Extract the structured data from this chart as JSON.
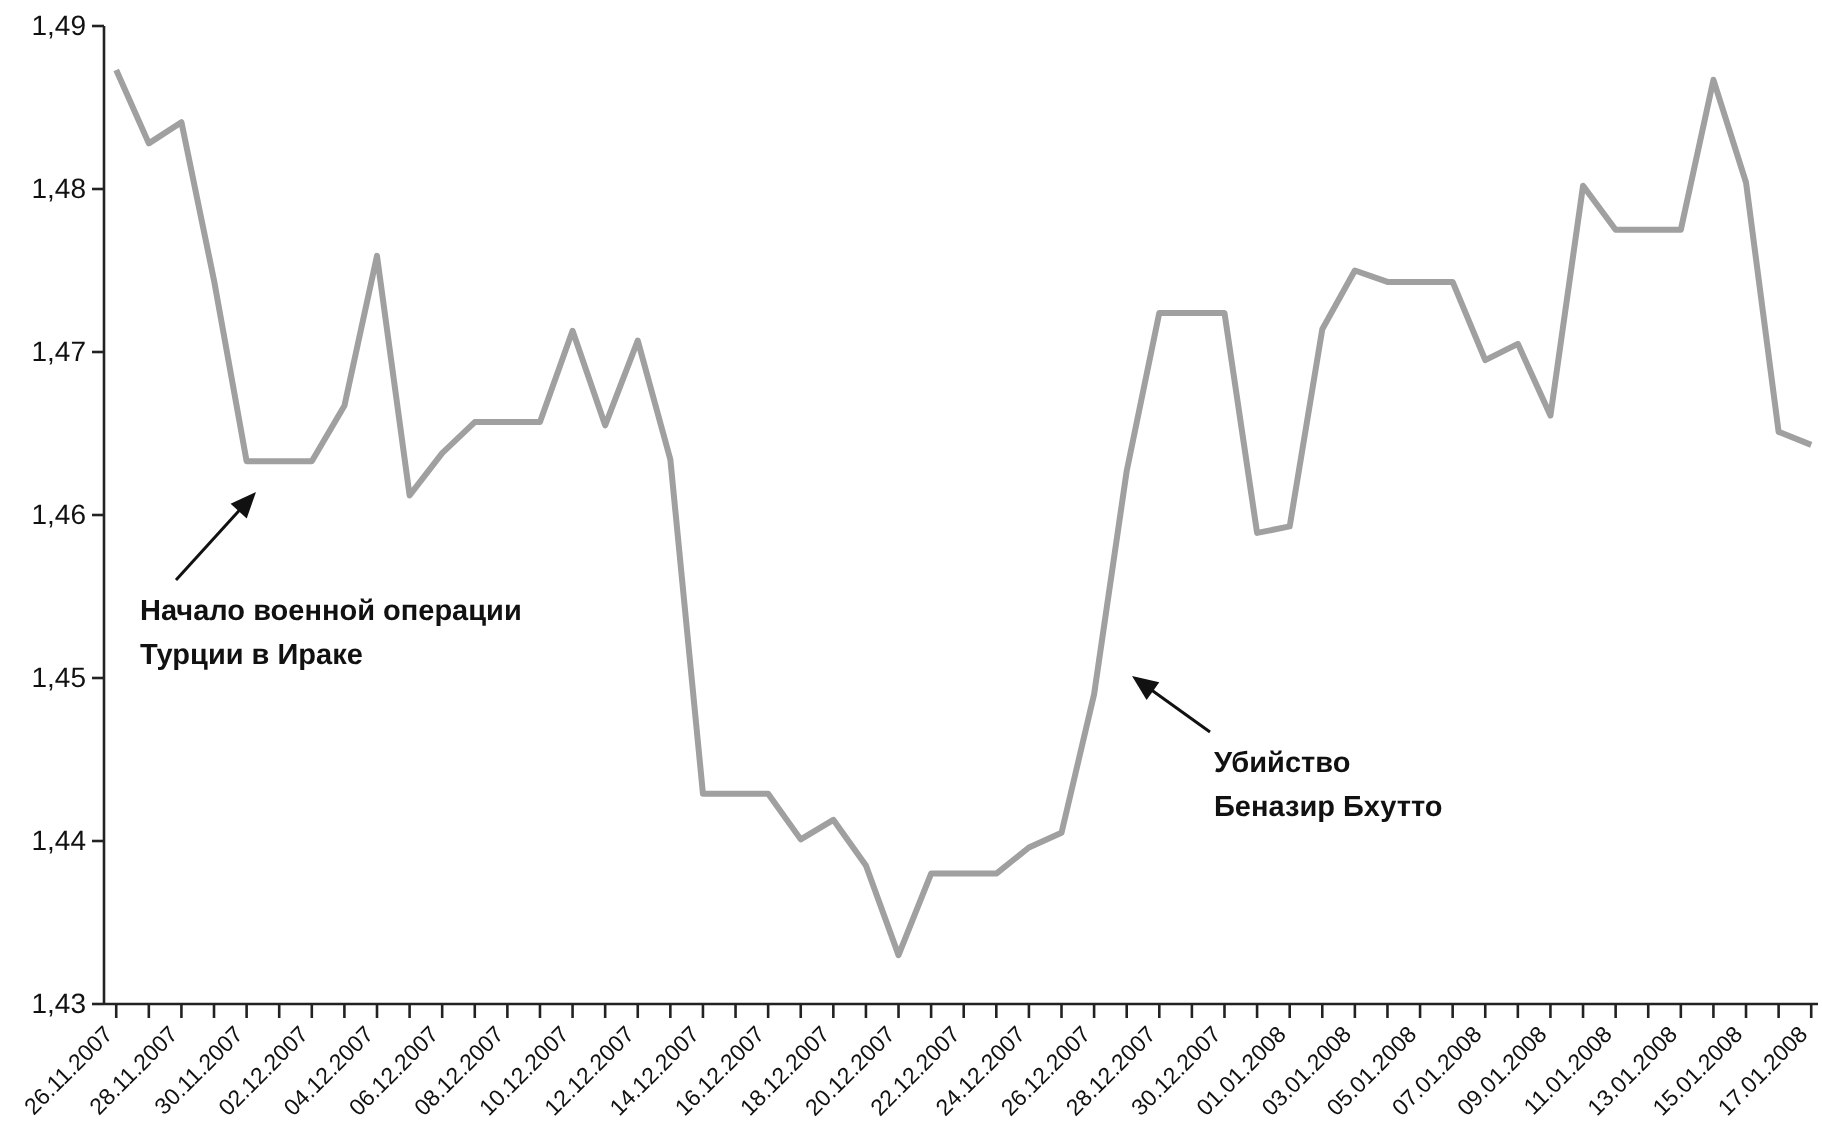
{
  "chart_data": {
    "type": "line",
    "x": [
      "2007-11-26",
      "2007-11-27",
      "2007-11-28",
      "2007-11-29",
      "2007-11-30",
      "2007-12-01",
      "2007-12-02",
      "2007-12-03",
      "2007-12-04",
      "2007-12-05",
      "2007-12-06",
      "2007-12-07",
      "2007-12-08",
      "2007-12-09",
      "2007-12-10",
      "2007-12-11",
      "2007-12-12",
      "2007-12-13",
      "2007-12-14",
      "2007-12-15",
      "2007-12-16",
      "2007-12-17",
      "2007-12-18",
      "2007-12-19",
      "2007-12-20",
      "2007-12-21",
      "2007-12-22",
      "2007-12-23",
      "2007-12-24",
      "2007-12-25",
      "2007-12-26",
      "2007-12-27",
      "2007-12-28",
      "2007-12-29",
      "2007-12-30",
      "2007-12-31",
      "2008-01-01",
      "2008-01-02",
      "2008-01-03",
      "2008-01-04",
      "2008-01-05",
      "2008-01-06",
      "2008-01-07",
      "2008-01-08",
      "2008-01-09",
      "2008-01-10",
      "2008-01-11",
      "2008-01-12",
      "2008-01-13",
      "2008-01-14",
      "2008-01-15",
      "2008-01-16",
      "2008-01-17"
    ],
    "series": [
      {
        "color": "#a0a0a0",
        "values": [
          1.4873,
          1.4828,
          1.4841,
          1.4744,
          1.4633,
          1.4633,
          1.4633,
          1.4667,
          1.4759,
          1.4612,
          1.4638,
          1.4657,
          1.4657,
          1.4657,
          1.4713,
          1.4655,
          1.4707,
          1.4634,
          1.4429,
          1.4429,
          1.4429,
          1.4401,
          1.4413,
          1.4385,
          1.433,
          1.438,
          1.438,
          1.438,
          1.4396,
          1.4405,
          1.449,
          1.4627,
          1.4724,
          1.4724,
          1.4724,
          1.4589,
          1.4593,
          1.4714,
          1.475,
          1.4743,
          1.4743,
          1.4743,
          1.4695,
          1.4705,
          1.4661,
          1.4802,
          1.4775,
          1.4775,
          1.4775,
          1.4867,
          1.4804,
          1.4651,
          1.4643
        ]
      }
    ],
    "xlim": [
      "2007-11-25T15:00",
      "2008-01-17T05:00"
    ],
    "xticks": [
      {
        "value": "2007-11-26",
        "label": "26.11.2007"
      },
      {
        "value": "2007-11-27",
        "label": null
      },
      {
        "value": "2007-11-28",
        "label": "28.11.2007"
      },
      {
        "value": "2007-11-29",
        "label": null
      },
      {
        "value": "2007-11-30",
        "label": "30.11.2007"
      },
      {
        "value": "2007-12-01",
        "label": null
      },
      {
        "value": "2007-12-02",
        "label": "02.12.2007"
      },
      {
        "value": "2007-12-03",
        "label": null
      },
      {
        "value": "2007-12-04",
        "label": "04.12.2007"
      },
      {
        "value": "2007-12-05",
        "label": null
      },
      {
        "value": "2007-12-06",
        "label": "06.12.2007"
      },
      {
        "value": "2007-12-07",
        "label": null
      },
      {
        "value": "2007-12-08",
        "label": "08.12.2007"
      },
      {
        "value": "2007-12-09",
        "label": null
      },
      {
        "value": "2007-12-10",
        "label": "10.12.2007"
      },
      {
        "value": "2007-12-11",
        "label": null
      },
      {
        "value": "2007-12-12",
        "label": "12.12.2007"
      },
      {
        "value": "2007-12-13",
        "label": null
      },
      {
        "value": "2007-12-14",
        "label": "14.12.2007"
      },
      {
        "value": "2007-12-15",
        "label": null
      },
      {
        "value": "2007-12-16",
        "label": "16.12.2007"
      },
      {
        "value": "2007-12-17",
        "label": null
      },
      {
        "value": "2007-12-18",
        "label": "18.12.2007"
      },
      {
        "value": "2007-12-19",
        "label": null
      },
      {
        "value": "2007-12-20",
        "label": "20.12.2007"
      },
      {
        "value": "2007-12-21",
        "label": null
      },
      {
        "value": "2007-12-22",
        "label": "22.12.2007"
      },
      {
        "value": "2007-12-23",
        "label": null
      },
      {
        "value": "2007-12-24",
        "label": "24.12.2007"
      },
      {
        "value": "2007-12-25",
        "label": null
      },
      {
        "value": "2007-12-26",
        "label": "26.12.2007"
      },
      {
        "value": "2007-12-27",
        "label": null
      },
      {
        "value": "2007-12-28",
        "label": "28.12.2007"
      },
      {
        "value": "2007-12-29",
        "label": null
      },
      {
        "value": "2007-12-30",
        "label": "30.12.2007"
      },
      {
        "value": "2007-12-31",
        "label": null
      },
      {
        "value": "2008-01-01",
        "label": "01.01.2008"
      },
      {
        "value": "2008-01-02",
        "label": null
      },
      {
        "value": "2008-01-03",
        "label": "03.01.2008"
      },
      {
        "value": "2008-01-04",
        "label": null
      },
      {
        "value": "2008-01-05",
        "label": "05.01.2008"
      },
      {
        "value": "2008-01-06",
        "label": null
      },
      {
        "value": "2008-01-07",
        "label": "07.01.2008"
      },
      {
        "value": "2008-01-08",
        "label": null
      },
      {
        "value": "2008-01-09",
        "label": "09.01.2008"
      },
      {
        "value": "2008-01-10",
        "label": null
      },
      {
        "value": "2008-01-11",
        "label": "11.01.2008"
      },
      {
        "value": "2008-01-12",
        "label": null
      },
      {
        "value": "2008-01-13",
        "label": "13.01.2008"
      },
      {
        "value": "2008-01-14",
        "label": null
      },
      {
        "value": "2008-01-15",
        "label": "15.01.2008"
      },
      {
        "value": "2008-01-16",
        "label": null
      },
      {
        "value": "2008-01-17",
        "label": "17.01.2008"
      }
    ],
    "ylim": [
      1.43,
      1.49
    ],
    "yticks": [
      {
        "value": 1.43,
        "label": "1,43"
      },
      {
        "value": 1.44,
        "label": "1,44"
      },
      {
        "value": 1.45,
        "label": "1,45"
      },
      {
        "value": 1.46,
        "label": "1,46"
      },
      {
        "value": 1.47,
        "label": "1,47"
      },
      {
        "value": 1.48,
        "label": "1,48"
      },
      {
        "value": 1.49,
        "label": "1,49"
      }
    ],
    "annotations": [
      "Начало военной операции\nТурции в Ираке",
      "Убийство\nБеназир Бхутто"
    ]
  }
}
